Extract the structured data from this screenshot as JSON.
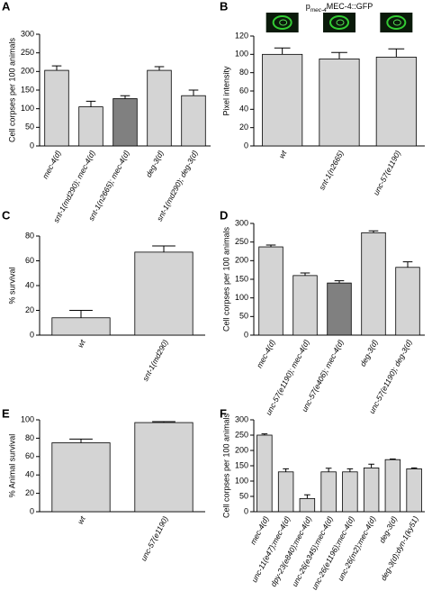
{
  "chart_data": [
    {
      "type": "bar",
      "panel": "A",
      "ylabel": "Cell corpses per 100 animals",
      "categories": [
        "mec-4(d)",
        "snt-1(md290); mec-4(d)",
        "snt-1(n2665); mec-4(d)",
        "deg-3(d)",
        "snt-1(md290); deg-3(d)"
      ],
      "values": [
        203,
        105,
        127,
        203,
        135
      ],
      "errors": [
        12,
        15,
        8,
        10,
        15
      ],
      "colors": [
        "#d4d4d4",
        "#d4d4d4",
        "#808080",
        "#d4d4d4",
        "#d4d4d4"
      ],
      "ylim": [
        0,
        300
      ],
      "yticks": [
        0,
        50,
        100,
        150,
        200,
        250,
        300
      ]
    },
    {
      "type": "bar",
      "panel": "B",
      "ylabel": "Pixel intensity",
      "image_title": {
        "prefix": "p",
        "subscript": "mec-4",
        "text": "MEC-4::GFP"
      },
      "categories": [
        "wt",
        "snt-1(n2665)",
        "unc-57(e1190)"
      ],
      "values": [
        100,
        95,
        97
      ],
      "errors": [
        7,
        7,
        9
      ],
      "colors": [
        "#d4d4d4",
        "#d4d4d4",
        "#d4d4d4"
      ],
      "ylim": [
        0,
        120
      ],
      "yticks": [
        0,
        20,
        40,
        60,
        80,
        100,
        120
      ]
    },
    {
      "type": "bar",
      "panel": "C",
      "ylabel": "% survival",
      "categories": [
        "wt",
        "snt-1(md290)"
      ],
      "values": [
        14,
        67
      ],
      "errors": [
        6,
        5
      ],
      "colors": [
        "#d4d4d4",
        "#d4d4d4"
      ],
      "ylim": [
        0,
        80
      ],
      "yticks": [
        0,
        20,
        40,
        60,
        80
      ]
    },
    {
      "type": "bar",
      "panel": "D",
      "ylabel": "Cell corpses per 100 animals",
      "categories": [
        "mec-4(d)",
        "unc-57(e1190); mec-4(d)",
        "unc-57(e406); mec-4(d)",
        "deg-3(d)",
        "unc-57(e1190); deg-3(d)"
      ],
      "values": [
        237,
        160,
        140,
        275,
        182
      ],
      "errors": [
        5,
        7,
        6,
        5,
        15
      ],
      "colors": [
        "#d4d4d4",
        "#d4d4d4",
        "#808080",
        "#d4d4d4",
        "#d4d4d4"
      ],
      "ylim": [
        0,
        300
      ],
      "yticks": [
        0,
        50,
        100,
        150,
        200,
        250,
        300
      ]
    },
    {
      "type": "bar",
      "panel": "E",
      "ylabel": "% Animal survival",
      "categories": [
        "wt",
        "unc-57(e1190)"
      ],
      "values": [
        75,
        97
      ],
      "errors": [
        4,
        1
      ],
      "colors": [
        "#d4d4d4",
        "#d4d4d4"
      ],
      "ylim": [
        0,
        100
      ],
      "yticks": [
        0,
        20,
        40,
        60,
        80,
        100
      ]
    },
    {
      "type": "bar",
      "panel": "F",
      "ylabel": "Cell corpses per 100 animals",
      "categories": [
        "mec-4(d)",
        "unc-11(e47);mec-4(d)",
        "dpy-23(e840);mec-4(d)",
        "unc-26(e345);mec-4(d)",
        "unc-26(e1196);mec-4(d)",
        "unc-26(m2);mec-4(d)",
        "deg-3(d)",
        "deg-3(d);dyn-1(ky51)"
      ],
      "values": [
        250,
        130,
        43,
        130,
        130,
        143,
        170,
        140
      ],
      "errors": [
        4,
        10,
        12,
        12,
        10,
        12,
        2,
        3
      ],
      "colors": [
        "#d4d4d4",
        "#d4d4d4",
        "#d4d4d4",
        "#d4d4d4",
        "#d4d4d4",
        "#d4d4d4",
        "#d4d4d4",
        "#d4d4d4"
      ],
      "ylim": [
        0,
        300
      ],
      "yticks": [
        0,
        50,
        100,
        150,
        200,
        250,
        300
      ]
    }
  ]
}
